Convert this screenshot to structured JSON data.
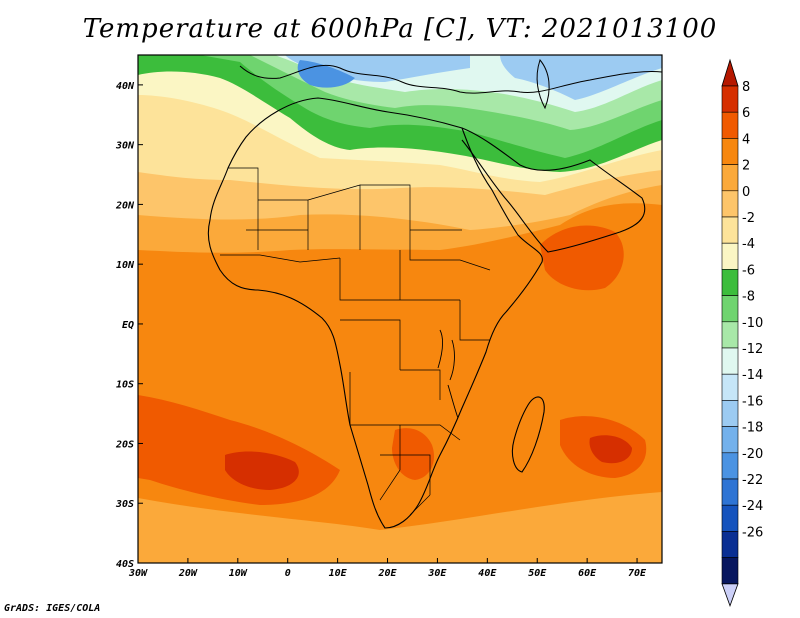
{
  "title": "Temperature at 600hPa [C], VT: 2021013100",
  "credit": "GrADS: IGES/COLA",
  "map": {
    "projection": "lat-lon",
    "lon_range": [
      -30,
      75
    ],
    "lat_range": [
      -40,
      45
    ],
    "lon_ticks": [
      {
        "value": -30,
        "label": "30W"
      },
      {
        "value": -20,
        "label": "20W"
      },
      {
        "value": -10,
        "label": "10W"
      },
      {
        "value": 0,
        "label": "0"
      },
      {
        "value": 10,
        "label": "10E"
      },
      {
        "value": 20,
        "label": "20E"
      },
      {
        "value": 30,
        "label": "30E"
      },
      {
        "value": 40,
        "label": "40E"
      },
      {
        "value": 50,
        "label": "50E"
      },
      {
        "value": 60,
        "label": "60E"
      },
      {
        "value": 70,
        "label": "70E"
      }
    ],
    "lat_ticks": [
      {
        "value": 40,
        "label": "40N"
      },
      {
        "value": 30,
        "label": "30N"
      },
      {
        "value": 20,
        "label": "20N"
      },
      {
        "value": 10,
        "label": "10N"
      },
      {
        "value": 0,
        "label": "EQ"
      },
      {
        "value": -10,
        "label": "10S"
      },
      {
        "value": -20,
        "label": "20S"
      },
      {
        "value": -30,
        "label": "30S"
      },
      {
        "value": -40,
        "label": "40S"
      }
    ]
  },
  "colorbar": {
    "levels": [
      "8",
      "6",
      "4",
      "2",
      "0",
      "-2",
      "-4",
      "-6",
      "-8",
      "-10",
      "-12",
      "-14",
      "-16",
      "-18",
      "-20",
      "-22",
      "-24",
      "-26"
    ],
    "colors_top_to_bottom": [
      "#d62f00",
      "#f05a00",
      "#f7870f",
      "#fba93a",
      "#fdc56a",
      "#fde39a",
      "#fbf6c4",
      "#3cbd3c",
      "#6fd46f",
      "#a8e8a8",
      "#e0f8f0",
      "#c6e6f8",
      "#9ccbf2",
      "#73b1ec",
      "#4b93e2",
      "#2e74d4",
      "#1553bd",
      "#0a2f93",
      "#08175f"
    ],
    "overflow_top_color": "#b51800",
    "overflow_bottom_color": "#ccd0f8"
  },
  "field_colors": {
    "t_pos7": "#d62f00",
    "t_pos5": "#f05a00",
    "t_pos3": "#f7870f",
    "t_pos1": "#fba93a",
    "t_neg1": "#fdc56a",
    "t_neg3": "#fde39a",
    "t_neg5": "#fbf6c4",
    "t_neg7": "#3cbd3c",
    "t_neg9": "#6fd46f",
    "t_neg11": "#a8e8a8",
    "t_neg13": "#e0f8f0",
    "t_neg15": "#9ccbf2",
    "t_neg17": "#4b93e2",
    "coast": "#000000"
  }
}
